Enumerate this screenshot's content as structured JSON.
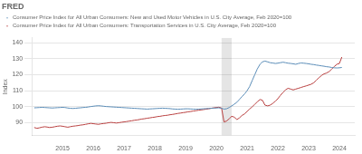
{
  "chart_data": {
    "type": "line",
    "title": "FRED",
    "ylabel": "Index",
    "xlim": [
      2014.0,
      2024.5
    ],
    "ylim": [
      82,
      143
    ],
    "xticks": [
      2015,
      2016,
      2017,
      2018,
      2019,
      2020,
      2021,
      2022,
      2023,
      2024
    ],
    "yticks": [
      90,
      100,
      110,
      120,
      130,
      140
    ],
    "grid": "y",
    "shaded_regions": [
      {
        "start": 2020.17,
        "end": 2020.5
      }
    ],
    "x": [
      2014.08,
      2014.17,
      2014.25,
      2014.33,
      2014.42,
      2014.5,
      2014.58,
      2014.67,
      2014.75,
      2014.83,
      2014.92,
      2015.0,
      2015.08,
      2015.17,
      2015.25,
      2015.33,
      2015.42,
      2015.5,
      2015.58,
      2015.67,
      2015.75,
      2015.83,
      2015.92,
      2016.0,
      2016.08,
      2016.17,
      2016.25,
      2016.33,
      2016.42,
      2016.5,
      2016.58,
      2016.67,
      2016.75,
      2016.83,
      2016.92,
      2017.0,
      2017.08,
      2017.17,
      2017.25,
      2017.33,
      2017.42,
      2017.5,
      2017.58,
      2017.67,
      2017.75,
      2017.83,
      2017.92,
      2018.0,
      2018.08,
      2018.17,
      2018.25,
      2018.33,
      2018.42,
      2018.5,
      2018.58,
      2018.67,
      2018.75,
      2018.83,
      2018.92,
      2019.0,
      2019.08,
      2019.17,
      2019.25,
      2019.33,
      2019.42,
      2019.5,
      2019.58,
      2019.67,
      2019.75,
      2019.83,
      2019.92,
      2020.0,
      2020.08,
      2020.17,
      2020.25,
      2020.33,
      2020.42,
      2020.5,
      2020.58,
      2020.67,
      2020.75,
      2020.83,
      2020.92,
      2021.0,
      2021.08,
      2021.17,
      2021.25,
      2021.33,
      2021.42,
      2021.5,
      2021.58,
      2021.67,
      2021.75,
      2021.83,
      2021.92,
      2022.0,
      2022.08,
      2022.17,
      2022.25,
      2022.33,
      2022.42,
      2022.5,
      2022.58,
      2022.67,
      2022.75,
      2022.83,
      2022.92,
      2023.0,
      2023.08,
      2023.17,
      2023.25,
      2023.33,
      2023.42,
      2023.5,
      2023.58,
      2023.67,
      2023.75,
      2023.83,
      2023.92,
      2024.0,
      2024.08
    ],
    "series": [
      {
        "name": "Consumer Price Index for All Urban Consumers: New and Used Motor Vehicles in U.S. City Average, Feb 2020=100",
        "color": "#5b8db8",
        "values": [
          99.3,
          99.4,
          99.5,
          99.6,
          99.5,
          99.4,
          99.3,
          99.2,
          99.3,
          99.4,
          99.5,
          99.6,
          99.5,
          99.2,
          99.0,
          98.9,
          99.0,
          99.2,
          99.3,
          99.5,
          99.6,
          99.8,
          100.1,
          100.3,
          100.5,
          100.6,
          100.5,
          100.3,
          100.1,
          100.0,
          99.9,
          99.8,
          99.7,
          99.6,
          99.5,
          99.4,
          99.3,
          99.2,
          99.1,
          99.0,
          98.9,
          98.8,
          98.7,
          98.6,
          98.5,
          98.6,
          98.7,
          98.8,
          98.9,
          99.0,
          99.1,
          99.0,
          98.9,
          98.8,
          98.6,
          98.5,
          98.4,
          98.5,
          98.6,
          98.7,
          98.7,
          98.6,
          98.5,
          98.4,
          98.5,
          98.6,
          98.7,
          98.8,
          98.9,
          99.0,
          99.1,
          99.2,
          99.3,
          99.0,
          98.5,
          98.7,
          99.5,
          100.5,
          101.5,
          102.8,
          104.5,
          106.2,
          108.0,
          110.0,
          112.5,
          116.5,
          120.0,
          123.5,
          126.5,
          128.0,
          128.5,
          128.0,
          127.5,
          127.3,
          127.0,
          127.2,
          127.5,
          127.8,
          127.5,
          127.2,
          127.0,
          126.8,
          126.5,
          127.0,
          127.3,
          127.2,
          127.0,
          126.8,
          126.5,
          126.3,
          126.0,
          125.8,
          125.5,
          125.3,
          125.0,
          124.8,
          124.5,
          124.3,
          124.2,
          124.3,
          124.5
        ]
      },
      {
        "name": "Consumer Price Index for All Urban Consumers: Transportation Services in U.S. City Average, Feb 2020=100",
        "color": "#b94040",
        "values": [
          87.0,
          86.5,
          86.8,
          87.2,
          87.5,
          87.3,
          87.0,
          87.2,
          87.5,
          87.8,
          88.0,
          87.8,
          87.5,
          87.2,
          87.5,
          87.8,
          88.0,
          88.2,
          88.5,
          88.7,
          89.0,
          89.3,
          89.6,
          89.4,
          89.2,
          89.0,
          89.3,
          89.5,
          89.7,
          90.0,
          90.2,
          90.0,
          89.8,
          90.0,
          90.3,
          90.5,
          90.7,
          91.0,
          91.2,
          91.5,
          91.7,
          92.0,
          92.3,
          92.5,
          92.8,
          93.0,
          93.3,
          93.5,
          93.8,
          94.0,
          94.3,
          94.5,
          94.7,
          95.0,
          95.2,
          95.5,
          95.8,
          96.0,
          96.3,
          96.5,
          96.8,
          97.0,
          97.3,
          97.5,
          97.8,
          98.0,
          98.2,
          98.5,
          98.7,
          99.0,
          99.3,
          99.5,
          99.7,
          99.2,
          90.5,
          91.0,
          92.5,
          94.0,
          93.5,
          92.0,
          93.0,
          94.5,
          95.5,
          97.0,
          98.5,
          100.0,
          101.5,
          103.0,
          104.5,
          104.0,
          101.0,
          100.5,
          101.0,
          102.0,
          103.5,
          105.0,
          107.0,
          109.0,
          110.5,
          111.5,
          111.0,
          110.5,
          111.0,
          111.5,
          112.0,
          112.5,
          113.0,
          113.5,
          114.0,
          115.0,
          116.5,
          118.0,
          119.5,
          120.5,
          121.0,
          122.0,
          123.5,
          125.0,
          126.5,
          127.0,
          131.0
        ]
      }
    ]
  }
}
